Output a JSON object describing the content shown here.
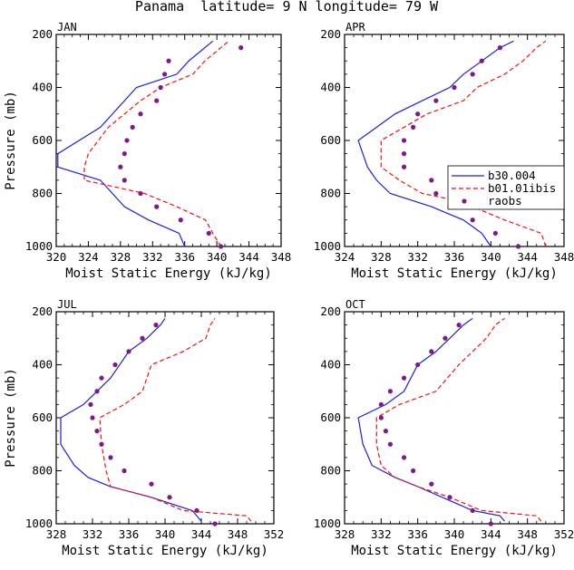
{
  "figure": {
    "title": "Panama  latitude= 9 N longitude= 79 W"
  },
  "colors": {
    "model_solid": "#1f1fdf",
    "model_dashed": "#ee1111",
    "raobs": "#7a1a8c"
  },
  "chart_data": [
    {
      "type": "line",
      "panel": "JAN",
      "xlabel": "Moist Static Energy (kJ/kg)",
      "ylabel": "Pressure (mb)",
      "xlim": [
        320,
        348
      ],
      "xticks": [
        320,
        324,
        328,
        332,
        336,
        340,
        344,
        348
      ],
      "ylim": [
        200,
        1000
      ],
      "yticks": [
        200,
        400,
        600,
        800,
        1000
      ],
      "y_reversed": true,
      "series": [
        {
          "name": "b30.004",
          "style": "solid",
          "points": [
            [
              336,
              1000
            ],
            [
              335.3,
              950
            ],
            [
              331.5,
              900
            ],
            [
              328.5,
              850
            ],
            [
              325.5,
              750
            ],
            [
              320.2,
              700
            ],
            [
              320.2,
              650
            ],
            [
              325.5,
              550
            ],
            [
              328.5,
              450
            ],
            [
              330,
              400
            ],
            [
              335,
              350
            ],
            [
              336.5,
              300
            ],
            [
              338.5,
              250
            ],
            [
              339.5,
              225
            ]
          ]
        },
        {
          "name": "b01.01ibis",
          "style": "dashed",
          "points": [
            [
              340.5,
              1000
            ],
            [
              339.5,
              950
            ],
            [
              338.6,
              900
            ],
            [
              335,
              850
            ],
            [
              331,
              800
            ],
            [
              323.5,
              750
            ],
            [
              323.5,
              700
            ],
            [
              324,
              650
            ],
            [
              326.5,
              550
            ],
            [
              330.5,
              450
            ],
            [
              333,
              400
            ],
            [
              337,
              350
            ],
            [
              338.5,
              300
            ],
            [
              340.5,
              250
            ],
            [
              341.5,
              225
            ]
          ]
        },
        {
          "name": "raobs",
          "style": "markers",
          "points": [
            [
              340.5,
              1000
            ],
            [
              339,
              950
            ],
            [
              335.5,
              900
            ],
            [
              332.5,
              850
            ],
            [
              330.5,
              800
            ],
            [
              328.5,
              750
            ],
            [
              328,
              700
            ],
            [
              328.5,
              650
            ],
            [
              328.8,
              600
            ],
            [
              329.5,
              550
            ],
            [
              330.5,
              500
            ],
            [
              332.5,
              450
            ],
            [
              333,
              400
            ],
            [
              333.5,
              350
            ],
            [
              334,
              300
            ],
            [
              343,
              250
            ]
          ]
        }
      ]
    },
    {
      "type": "line",
      "panel": "APR",
      "xlabel": "Moist Static Energy (kJ/kg)",
      "ylabel": "",
      "xlim": [
        324,
        348
      ],
      "xticks": [
        324,
        328,
        332,
        336,
        340,
        344,
        348
      ],
      "ylim": [
        200,
        1000
      ],
      "yticks": [
        200,
        400,
        600,
        800,
        1000
      ],
      "y_reversed": true,
      "series": [
        {
          "name": "b30.004",
          "style": "solid",
          "points": [
            [
              340,
              1000
            ],
            [
              339,
              950
            ],
            [
              337,
              900
            ],
            [
              333.5,
              850
            ],
            [
              329,
              800
            ],
            [
              327.5,
              750
            ],
            [
              326.5,
              700
            ],
            [
              325.5,
              600
            ],
            [
              329.5,
              500
            ],
            [
              332.5,
              450
            ],
            [
              335.5,
              400
            ],
            [
              337,
              350
            ],
            [
              339,
              300
            ],
            [
              341,
              250
            ],
            [
              342.5,
              225
            ]
          ]
        },
        {
          "name": "b01.01ibis",
          "style": "dashed",
          "points": [
            [
              346,
              1000
            ],
            [
              345.5,
              950
            ],
            [
              341.5,
              900
            ],
            [
              338,
              850
            ],
            [
              336,
              825
            ],
            [
              332.5,
              800
            ],
            [
              330,
              750
            ],
            [
              328,
              700
            ],
            [
              328,
              600
            ],
            [
              333,
              500
            ],
            [
              337,
              450
            ],
            [
              338.5,
              400
            ],
            [
              341.5,
              350
            ],
            [
              343.5,
              300
            ],
            [
              345,
              250
            ],
            [
              346,
              225
            ]
          ]
        },
        {
          "name": "raobs",
          "style": "markers",
          "points": [
            [
              343,
              1000
            ],
            [
              340.5,
              950
            ],
            [
              338,
              900
            ],
            [
              335.5,
              850
            ],
            [
              334,
              800
            ],
            [
              333.5,
              750
            ],
            [
              330.5,
              700
            ],
            [
              330.5,
              650
            ],
            [
              330.5,
              600
            ],
            [
              331.5,
              550
            ],
            [
              332,
              500
            ],
            [
              334,
              450
            ],
            [
              336,
              400
            ],
            [
              338,
              350
            ],
            [
              339,
              300
            ],
            [
              341,
              250
            ]
          ]
        }
      ]
    },
    {
      "type": "line",
      "panel": "JUL",
      "xlabel": "Moist Static Energy (kJ/kg)",
      "ylabel": "Pressure (mb)",
      "xlim": [
        328,
        352
      ],
      "xticks": [
        328,
        332,
        336,
        340,
        344,
        348,
        352
      ],
      "ylim": [
        200,
        1000
      ],
      "yticks": [
        200,
        400,
        600,
        800,
        1000
      ],
      "y_reversed": true,
      "series": [
        {
          "name": "b30.004",
          "style": "solid",
          "points": [
            [
              344,
              990
            ],
            [
              343,
              950
            ],
            [
              338.5,
              900
            ],
            [
              334,
              860
            ],
            [
              331.5,
              825
            ],
            [
              330,
              780
            ],
            [
              328.5,
              700
            ],
            [
              328.5,
              600
            ],
            [
              331,
              550
            ],
            [
              332.5,
              500
            ],
            [
              334,
              450
            ],
            [
              336,
              350
            ],
            [
              338,
              300
            ],
            [
              339.5,
              250
            ],
            [
              340,
              225
            ]
          ]
        },
        {
          "name": "b01.01ibis",
          "style": "dashed",
          "points": [
            [
              349.5,
              990
            ],
            [
              349,
              970
            ],
            [
              342,
              950
            ],
            [
              338.5,
              900
            ],
            [
              334,
              860
            ],
            [
              333.5,
              800
            ],
            [
              333,
              700
            ],
            [
              332.8,
              600
            ],
            [
              335.5,
              550
            ],
            [
              337.5,
              500
            ],
            [
              338,
              450
            ],
            [
              338.5,
              400
            ],
            [
              342,
              350
            ],
            [
              344.5,
              300
            ],
            [
              345,
              250
            ],
            [
              345.5,
              225
            ]
          ]
        },
        {
          "name": "raobs",
          "style": "markers",
          "points": [
            [
              345.5,
              1000
            ],
            [
              343.5,
              950
            ],
            [
              340.5,
              900
            ],
            [
              338.5,
              850
            ],
            [
              335.5,
              800
            ],
            [
              334,
              750
            ],
            [
              333,
              700
            ],
            [
              332.5,
              650
            ],
            [
              332,
              600
            ],
            [
              331.8,
              550
            ],
            [
              332.5,
              500
            ],
            [
              333,
              450
            ],
            [
              334.5,
              400
            ],
            [
              336,
              350
            ],
            [
              337.5,
              300
            ],
            [
              339,
              250
            ]
          ]
        }
      ]
    },
    {
      "type": "line",
      "panel": "OCT",
      "xlabel": "Moist Static Energy (kJ/kg)",
      "ylabel": "",
      "xlim": [
        328,
        352
      ],
      "xticks": [
        328,
        332,
        336,
        340,
        344,
        348,
        352
      ],
      "ylim": [
        200,
        1000
      ],
      "yticks": [
        200,
        400,
        600,
        800,
        1000
      ],
      "y_reversed": true,
      "series": [
        {
          "name": "b30.004",
          "style": "solid",
          "points": [
            [
              345.5,
              990
            ],
            [
              345,
              970
            ],
            [
              342,
              950
            ],
            [
              336,
              860
            ],
            [
              333.5,
              825
            ],
            [
              331,
              780
            ],
            [
              330,
              700
            ],
            [
              329.5,
              600
            ],
            [
              332.5,
              550
            ],
            [
              334.5,
              500
            ],
            [
              336,
              400
            ],
            [
              338,
              350
            ],
            [
              339.5,
              300
            ],
            [
              341,
              250
            ],
            [
              342,
              225
            ]
          ]
        },
        {
          "name": "b01.01ibis",
          "style": "dashed",
          "points": [
            [
              349.5,
              990
            ],
            [
              349,
              970
            ],
            [
              343,
              950
            ],
            [
              339.5,
              900
            ],
            [
              336,
              860
            ],
            [
              333.5,
              825
            ],
            [
              332,
              780
            ],
            [
              331.5,
              700
            ],
            [
              331.5,
              600
            ],
            [
              334,
              550
            ],
            [
              338,
              500
            ],
            [
              340.5,
              400
            ],
            [
              342,
              350
            ],
            [
              343.5,
              300
            ],
            [
              344.5,
              250
            ],
            [
              345.5,
              225
            ]
          ]
        },
        {
          "name": "raobs",
          "style": "markers",
          "points": [
            [
              344,
              1000
            ],
            [
              342,
              950
            ],
            [
              339.5,
              900
            ],
            [
              337.5,
              850
            ],
            [
              335.5,
              800
            ],
            [
              334.5,
              750
            ],
            [
              333,
              700
            ],
            [
              332.5,
              650
            ],
            [
              332,
              600
            ],
            [
              332,
              550
            ],
            [
              333,
              500
            ],
            [
              334.5,
              450
            ],
            [
              336,
              400
            ],
            [
              337.5,
              350
            ],
            [
              339,
              300
            ],
            [
              340.5,
              250
            ]
          ]
        }
      ]
    }
  ],
  "legend": {
    "panel": "APR",
    "placement": "middle-right",
    "items": [
      {
        "label": "b30.004",
        "style": "solid"
      },
      {
        "label": "b01.01ibis",
        "style": "dashed"
      },
      {
        "label": "raobs",
        "style": "markers"
      }
    ]
  }
}
